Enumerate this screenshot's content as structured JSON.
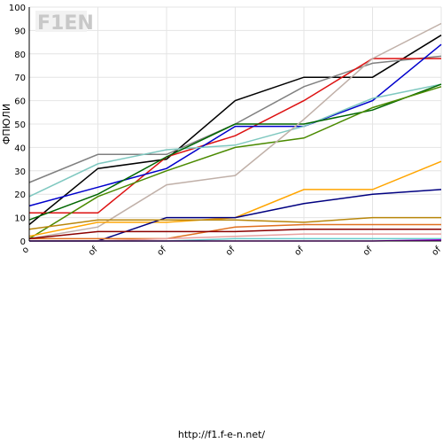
{
  "chart_data": {
    "type": "line",
    "title": "",
    "xlabel": "",
    "ylabel": "ФПЮЛИ",
    "ylim": [
      0,
      100
    ],
    "yticks": [
      0,
      10,
      20,
      30,
      40,
      50,
      60,
      70,
      80,
      90,
      100
    ],
    "grid": true,
    "legend": "none",
    "categories": [
      "o",
      "of",
      "of",
      "of",
      "of",
      "of",
      "of"
    ],
    "series": [
      {
        "color": "#000000",
        "values": [
          7,
          31,
          35,
          60,
          70,
          70,
          88
        ]
      },
      {
        "color": "#808080",
        "values": [
          25,
          37,
          37,
          50,
          66,
          76,
          79
        ]
      },
      {
        "color": "#dd1111",
        "values": [
          12,
          12,
          36,
          45,
          60,
          78,
          78
        ]
      },
      {
        "color": "#0000cc",
        "values": [
          15,
          23,
          31,
          49,
          49,
          60,
          84
        ]
      },
      {
        "color": "#7fc8c0",
        "values": [
          19,
          33,
          39,
          41,
          49,
          61,
          67
        ]
      },
      {
        "color": "#006600",
        "values": [
          9,
          20,
          36,
          50,
          50,
          56,
          67
        ]
      },
      {
        "color": "#4a8a00",
        "values": [
          1,
          19,
          30,
          40,
          44,
          57,
          66
        ]
      },
      {
        "color": "#c0b0a8",
        "values": [
          1,
          6,
          24,
          28,
          52,
          78,
          93
        ]
      },
      {
        "color": "#ffa500",
        "values": [
          2,
          8,
          8,
          10,
          22,
          22,
          34
        ]
      },
      {
        "color": "#000080",
        "values": [
          0,
          0,
          10,
          10,
          16,
          20,
          22
        ]
      },
      {
        "color": "#b8860b",
        "values": [
          5,
          9,
          9,
          9,
          8,
          10,
          10
        ]
      },
      {
        "color": "#e07020",
        "values": [
          1,
          1,
          1,
          6,
          7,
          7,
          7
        ]
      },
      {
        "color": "#8b0000",
        "values": [
          1,
          4,
          4,
          4,
          5,
          5,
          5
        ]
      },
      {
        "color": "#e8a0a0",
        "values": [
          0,
          0,
          1,
          2,
          3,
          3,
          3
        ]
      },
      {
        "color": "#66cccc",
        "values": [
          0,
          0,
          0,
          1,
          1,
          1,
          1
        ]
      },
      {
        "color": "#9900cc",
        "values": [
          0,
          0,
          0,
          0,
          0,
          0,
          0.5
        ]
      }
    ]
  },
  "watermark": {
    "text": "F1EN"
  },
  "footer": {
    "url": "http://f1.f-e-n.net/"
  }
}
